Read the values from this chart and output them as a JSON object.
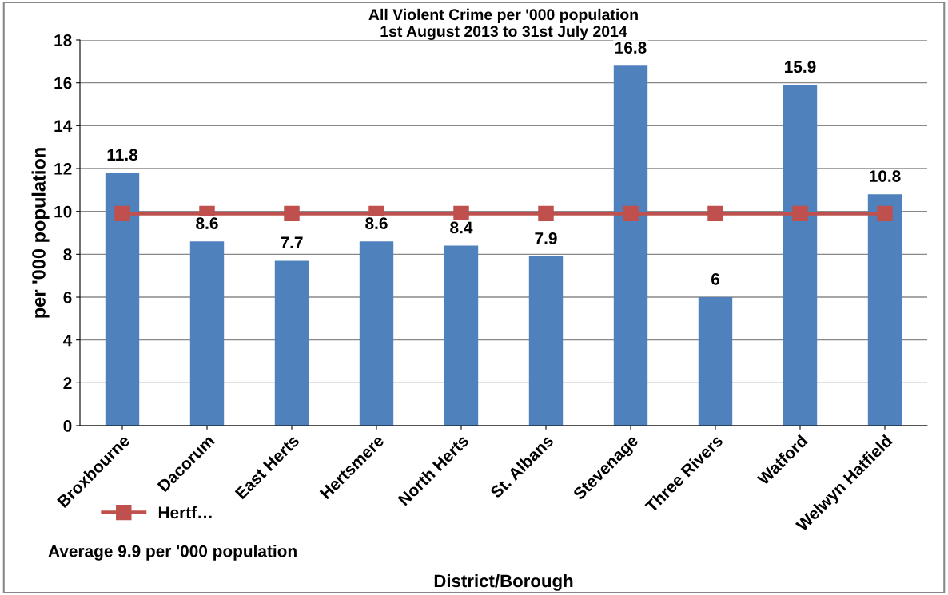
{
  "chart_data": {
    "type": "bar",
    "title": "All Violent Crime per '000 population\n1st August 2013 to 31st July 2014",
    "xlabel": "District/Borough",
    "ylabel": "per '000 population",
    "categories": [
      "Broxbourne",
      "Dacorum",
      "East Herts",
      "Hertsmere",
      "North Herts",
      "St. Albans",
      "Stevenage",
      "Three Rivers",
      "Watford",
      "Welwyn Hatfield"
    ],
    "series": [
      {
        "color": "#4f81bd",
        "values": [
          11.8,
          8.6,
          7.7,
          8.6,
          8.4,
          7.9,
          16.8,
          6,
          15.9,
          10.8
        ],
        "value_labels": [
          "11.8",
          "8.6",
          "7.7",
          "8.6",
          "8.4",
          "7.9",
          "16.8",
          "6",
          "15.9",
          "10.8"
        ]
      },
      {
        "type": "line",
        "name": "Hertf…",
        "color": "#c0504d",
        "marker": "square",
        "values": [
          9.9,
          9.9,
          9.9,
          9.9,
          9.9,
          9.9,
          9.9,
          9.9,
          9.9,
          9.9
        ]
      }
    ],
    "ylim": [
      0,
      18
    ],
    "yticks": [
      0,
      2,
      4,
      6,
      8,
      10,
      12,
      14,
      16,
      18
    ],
    "grid": "y",
    "legend": "bottom left",
    "annotations": [
      "Average 9.9 per '000 population"
    ]
  }
}
